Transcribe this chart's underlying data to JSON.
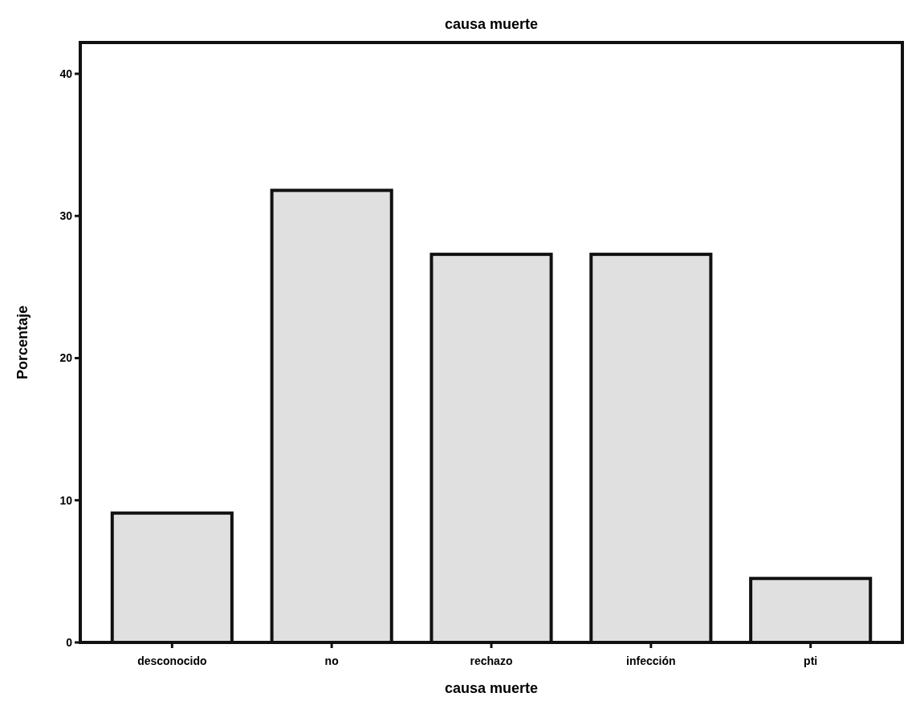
{
  "chart_data": {
    "type": "bar",
    "title": "causa muerte",
    "xlabel": "causa muerte",
    "ylabel": "Porcentaje",
    "categories": [
      "desconocido",
      "no",
      "rechazo",
      "infección",
      "pti"
    ],
    "values": [
      9.1,
      31.8,
      27.3,
      27.3,
      4.5
    ],
    "color": "#e0e0e0",
    "ylim": [
      0,
      42.2
    ],
    "yticks": [
      0,
      10,
      20,
      30,
      40
    ],
    "grid": false,
    "legend": false
  }
}
